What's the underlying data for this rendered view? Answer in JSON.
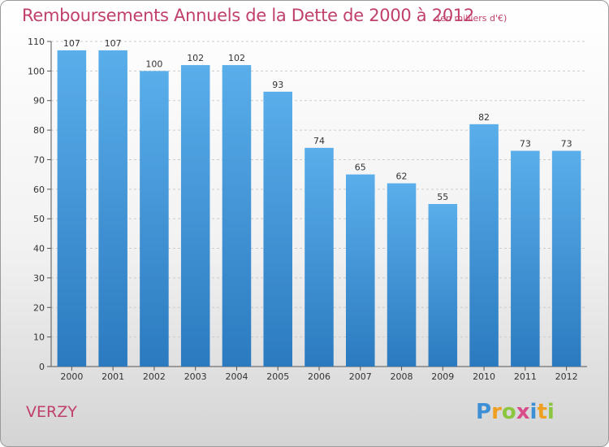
{
  "header": {
    "title": "Remboursements Annuels de la Dette de 2000 à 2012",
    "subtitle": "(en milliers d'€)"
  },
  "footer": {
    "town": "VERZY",
    "brand": "Proxiti"
  },
  "colors": {
    "title": "#c0406a",
    "bar_top": "#5aaeea",
    "bar_bottom": "#2b7ac0",
    "gridline": "#cccccc"
  },
  "chart_data": {
    "type": "bar",
    "title": "Remboursements Annuels de la Dette de 2000 à 2012",
    "subtitle": "(en milliers d'€)",
    "categories": [
      "2000",
      "2001",
      "2002",
      "2003",
      "2004",
      "2005",
      "2006",
      "2007",
      "2008",
      "2009",
      "2010",
      "2011",
      "2012"
    ],
    "values": [
      107,
      107,
      100,
      102,
      102,
      93,
      74,
      65,
      62,
      55,
      82,
      73,
      73
    ],
    "ylim": [
      0,
      110
    ],
    "yticks": [
      0,
      10,
      20,
      30,
      40,
      50,
      60,
      70,
      80,
      90,
      100,
      110
    ],
    "grid": true,
    "legend": "none"
  }
}
